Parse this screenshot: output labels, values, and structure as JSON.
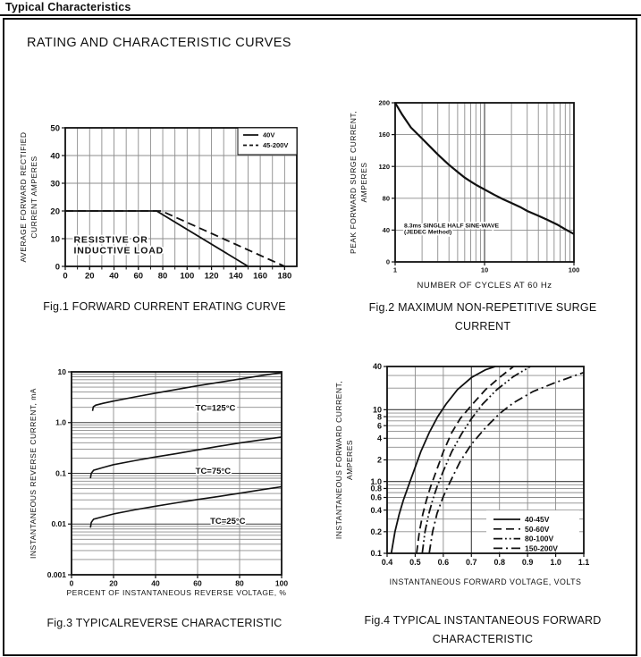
{
  "page": {
    "title": "Typical Characteristics",
    "heading": "RATING AND CHARACTERISTIC CURVES"
  },
  "chart_data": [
    {
      "id": "fig1",
      "type": "line",
      "title": "Fig.1 FORWARD CURRENT ERATING CURVE",
      "title_lines": [
        "Fig.1 FORWARD CURRENT ERATING CURVE"
      ],
      "xlabel": "",
      "ylabel": "AVERAGE FORWARD RECTIFIED CURRENT AMPERES",
      "ylabel_lines": [
        "AVERAGE FORWARD RECTIFIED",
        "CURRENT AMPERES"
      ],
      "xscale": "linear",
      "yscale": "linear",
      "xlim": [
        0,
        190
      ],
      "ylim": [
        0,
        50
      ],
      "xticks": [
        0,
        20,
        40,
        60,
        80,
        100,
        120,
        140,
        160,
        180
      ],
      "xtick_labels": [
        "0",
        "20",
        "40",
        "60",
        "80",
        "100",
        "120",
        "140",
        "160",
        "180"
      ],
      "yticks": [
        0,
        10,
        20,
        30,
        40,
        50
      ],
      "ytick_labels": [
        "0",
        "10",
        "20",
        "30",
        "40",
        "50"
      ],
      "xgrid": {
        "values": [
          10,
          20,
          30,
          40,
          50,
          60,
          70,
          80,
          90,
          100,
          110,
          120,
          130,
          140,
          150,
          160,
          170,
          180
        ],
        "major": []
      },
      "ygrid": {
        "values": [
          10,
          20,
          30,
          40
        ],
        "major": []
      },
      "series": [
        {
          "name": "45-200V",
          "style": "dashed",
          "points": [
            [
              0,
              20
            ],
            [
              79,
              20
            ],
            [
              180,
              0
            ]
          ]
        },
        {
          "name": "40V",
          "style": "solid",
          "points": [
            [
              0,
              20
            ],
            [
              75,
              20
            ],
            [
              150,
              0
            ]
          ]
        }
      ],
      "annotations": [
        {
          "text": "RESISTIVE OR",
          "x": 7,
          "y": 9.8,
          "size": 10.5,
          "bold": true,
          "ls": 0.8
        },
        {
          "text": "INDUCTIVE LOAD",
          "x": 7,
          "y": 5.9,
          "size": 10.5,
          "bold": true,
          "ls": 0.8
        }
      ],
      "legend": {
        "items": [
          {
            "label": "40V",
            "style": "solid"
          },
          {
            "label": "45-200V",
            "style": "dashed-short"
          }
        ]
      }
    },
    {
      "id": "fig2",
      "type": "line",
      "title": "Fig.2 MAXIMUM NON-REPETITIVE SURGE CURRENT",
      "title_lines": [
        "Fig.2 MAXIMUM NON-REPETITIVE SURGE",
        "CURRENT"
      ],
      "xlabel": "NUMBER OF CYCLES AT 60 Hz",
      "ylabel": "PEAK  FORWARD SURGE CURRENT, AMPERES",
      "ylabel_lines": [
        "PEAK  FORWARD SURGE CURRENT,",
        "AMPERES"
      ],
      "xscale": "log",
      "yscale": "linear",
      "xlim": [
        1,
        100
      ],
      "ylim": [
        0,
        200
      ],
      "xticks": [
        1,
        10,
        100
      ],
      "xtick_labels": [
        "1",
        "10",
        "100"
      ],
      "yticks": [
        0,
        40,
        80,
        120,
        160,
        200
      ],
      "ytick_labels": [
        "0",
        "40",
        "80",
        "120",
        "160",
        "200"
      ],
      "xgrid": {
        "values": [
          2,
          3,
          4,
          5,
          6,
          7,
          8,
          9,
          20,
          30,
          40,
          50,
          60,
          70,
          80,
          90
        ],
        "major": [
          10
        ]
      },
      "ygrid": {
        "values": [
          40,
          80,
          120,
          160
        ],
        "major": []
      },
      "series": [
        {
          "name": "surge-current",
          "style": "solid",
          "points": [
            [
              1,
              200
            ],
            [
              1.2,
              185
            ],
            [
              1.5,
              169
            ],
            [
              2,
              155
            ],
            [
              2.5,
              144
            ],
            [
              3,
              135
            ],
            [
              4,
              122
            ],
            [
              5,
              113
            ],
            [
              6,
              106
            ],
            [
              7,
              101
            ],
            [
              8,
              97
            ],
            [
              10,
              91
            ],
            [
              13,
              84
            ],
            [
              16,
              79
            ],
            [
              20,
              74
            ],
            [
              25,
              69
            ],
            [
              30,
              64
            ],
            [
              40,
              58
            ],
            [
              50,
              53
            ],
            [
              65,
              47
            ],
            [
              80,
              41
            ],
            [
              100,
              35
            ]
          ]
        }
      ],
      "annotations": [
        {
          "text": "8.3ms SINGLE HALF SINE-WAVE",
          "x": 1.26,
          "y": 46,
          "size": 6.8,
          "bold": true
        },
        {
          "text": "(JEDEC Method)",
          "x": 1.26,
          "y": 38,
          "size": 6.8,
          "bold": true
        }
      ]
    },
    {
      "id": "fig3",
      "type": "line",
      "title": "Fig.3 TYPICALREVERSE CHARACTERISTIC",
      "title_lines": [
        "Fig.3 TYPICALREVERSE CHARACTERISTIC"
      ],
      "xlabel": "PERCENT OF INSTANTANEOUS REVERSE VOLTAGE, %",
      "ylabel": "INSTANTANEOUS REVERSE CURRENT, mA",
      "ylabel_lines": [
        "INSTANTANEOUS REVERSE CURRENT, mA"
      ],
      "xscale": "linear",
      "yscale": "log",
      "xlim": [
        0,
        100
      ],
      "ylim": [
        0.001,
        10
      ],
      "xticks": [
        0,
        20,
        40,
        60,
        80,
        100
      ],
      "xtick_labels": [
        "0",
        "20",
        "40",
        "60",
        "80",
        "100"
      ],
      "yticks": [
        10,
        1,
        0.1,
        0.01,
        0.001
      ],
      "ytick_labels": [
        "10",
        "1.0",
        "0.1",
        "0.01",
        "0.001"
      ],
      "xgrid": {
        "values": [
          20,
          40,
          60,
          80
        ],
        "major": []
      },
      "ygrid": {
        "values": [
          0.002,
          0.003,
          0.004,
          0.005,
          0.006,
          0.007,
          0.008,
          0.009,
          0.02,
          0.03,
          0.04,
          0.05,
          0.06,
          0.07,
          0.08,
          0.09,
          0.2,
          0.3,
          0.4,
          0.5,
          0.6,
          0.7,
          0.8,
          0.9,
          2,
          3,
          4,
          5,
          6,
          7,
          8,
          9
        ],
        "major": [
          0.01,
          0.1,
          1
        ]
      },
      "series": [
        {
          "name": "TC=125°C",
          "style": "solid",
          "points": [
            [
              10,
              1.7
            ],
            [
              10.4,
              2.05
            ],
            [
              11.5,
              2.2
            ],
            [
              15,
              2.4
            ],
            [
              20,
              2.65
            ],
            [
              30,
              3.2
            ],
            [
              40,
              3.8
            ],
            [
              50,
              4.5
            ],
            [
              60,
              5.3
            ],
            [
              70,
              6.2
            ],
            [
              80,
              7.2
            ],
            [
              90,
              8.4
            ],
            [
              100,
              9.7
            ]
          ]
        },
        {
          "name": "TC=75°C",
          "style": "solid",
          "points": [
            [
              9,
              0.08
            ],
            [
              9.4,
              0.1
            ],
            [
              10.5,
              0.115
            ],
            [
              15,
              0.13
            ],
            [
              20,
              0.148
            ],
            [
              30,
              0.177
            ],
            [
              40,
              0.21
            ],
            [
              50,
              0.245
            ],
            [
              60,
              0.29
            ],
            [
              70,
              0.34
            ],
            [
              80,
              0.395
            ],
            [
              90,
              0.455
            ],
            [
              100,
              0.52
            ]
          ]
        },
        {
          "name": "TC=25°C",
          "style": "solid",
          "points": [
            [
              9,
              0.0085
            ],
            [
              9.4,
              0.0108
            ],
            [
              10.5,
              0.0125
            ],
            [
              15,
              0.014
            ],
            [
              20,
              0.0158
            ],
            [
              30,
              0.019
            ],
            [
              40,
              0.0225
            ],
            [
              50,
              0.0262
            ],
            [
              60,
              0.0305
            ],
            [
              70,
              0.035
            ],
            [
              80,
              0.0405
            ],
            [
              90,
              0.047
            ],
            [
              100,
              0.0545
            ]
          ]
        }
      ],
      "annotations": [
        {
          "text": "TC=125°C",
          "x": 59,
          "y": 1.95,
          "size": 9.5,
          "bold": true
        },
        {
          "text": "TC=75°C",
          "x": 59,
          "y": 0.112,
          "size": 9.5,
          "bold": true
        },
        {
          "text": "TC=25°C",
          "x": 66,
          "y": 0.0115,
          "size": 9.5,
          "bold": true
        }
      ]
    },
    {
      "id": "fig4",
      "type": "line",
      "title": "Fig.4 TYPICAL INSTANTANEOUS FORWARD CHARACTERISTIC",
      "title_lines": [
        "Fig.4 TYPICAL INSTANTANEOUS FORWARD",
        "CHARACTERISTIC"
      ],
      "xlabel": "INSTANTANEOUS FORWARD VOLTAGE, VOLTS",
      "ylabel": "INSTANTANEOUS FORWARD CURRENT, AMPERES",
      "ylabel_lines": [
        "INSTANTANEOUS FORWARD CURRENT,",
        "AMPERES"
      ],
      "xscale": "linear",
      "yscale": "log",
      "xlim": [
        0.4,
        1.1
      ],
      "ylim": [
        0.1,
        40
      ],
      "xticks": [
        0.4,
        0.5,
        0.6,
        0.7,
        0.8,
        0.9,
        1.0,
        1.1
      ],
      "xtick_labels": [
        "0.4",
        "0.5",
        "0.6",
        "0.7",
        "0.8",
        "0.9",
        "1.0",
        "1.1"
      ],
      "yticks": [
        40,
        10,
        8,
        6,
        4,
        2,
        1,
        0.8,
        0.6,
        0.4,
        0.2,
        0.1
      ],
      "ytick_labels": [
        "40",
        "10",
        "8",
        "6",
        "4",
        "2",
        "1.0",
        "0.8",
        "0.6",
        "0.4",
        "0.2",
        "0.1"
      ],
      "xgrid": {
        "values": [
          0.5,
          0.6,
          0.8,
          0.9,
          1.0
        ],
        "major": [
          0.7
        ]
      },
      "ygrid": {
        "values": [
          0.2,
          0.3,
          0.4,
          0.5,
          0.6,
          0.7,
          0.8,
          0.9,
          2,
          3,
          4,
          5,
          6,
          7,
          8,
          9,
          20,
          30
        ],
        "major": [
          1,
          10
        ]
      },
      "series": [
        {
          "name": "40-45V",
          "style": "solid",
          "points": [
            [
              0.415,
              0.1
            ],
            [
              0.428,
              0.2
            ],
            [
              0.443,
              0.35
            ],
            [
              0.458,
              0.55
            ],
            [
              0.475,
              0.85
            ],
            [
              0.495,
              1.4
            ],
            [
              0.52,
              2.6
            ],
            [
              0.55,
              4.8
            ],
            [
              0.58,
              8
            ],
            [
              0.61,
              12
            ],
            [
              0.65,
              19
            ],
            [
              0.7,
              28
            ],
            [
              0.75,
              36
            ],
            [
              0.785,
              40
            ]
          ]
        },
        {
          "name": "50-60V",
          "style": "dashed",
          "points": [
            [
              0.505,
              0.1
            ],
            [
              0.515,
              0.2
            ],
            [
              0.527,
              0.35
            ],
            [
              0.54,
              0.55
            ],
            [
              0.555,
              0.85
            ],
            [
              0.572,
              1.3
            ],
            [
              0.6,
              2.6
            ],
            [
              0.63,
              4.8
            ],
            [
              0.66,
              7.5
            ],
            [
              0.7,
              11.5
            ],
            [
              0.75,
              19
            ],
            [
              0.8,
              28
            ],
            [
              0.85,
              40
            ]
          ]
        },
        {
          "name": "80-100V",
          "style": "dashdotdot",
          "points": [
            [
              0.525,
              0.1
            ],
            [
              0.535,
              0.2
            ],
            [
              0.548,
              0.35
            ],
            [
              0.562,
              0.55
            ],
            [
              0.578,
              0.85
            ],
            [
              0.6,
              1.4
            ],
            [
              0.63,
              2.6
            ],
            [
              0.665,
              4.6
            ],
            [
              0.7,
              7.5
            ],
            [
              0.74,
              12
            ],
            [
              0.79,
              19
            ],
            [
              0.85,
              29
            ],
            [
              0.91,
              40
            ]
          ]
        },
        {
          "name": "150-200V",
          "style": "dashdot",
          "points": [
            [
              0.55,
              0.1
            ],
            [
              0.562,
              0.2
            ],
            [
              0.578,
              0.36
            ],
            [
              0.6,
              0.62
            ],
            [
              0.625,
              1.0
            ],
            [
              0.66,
              1.9
            ],
            [
              0.7,
              3.3
            ],
            [
              0.75,
              5.6
            ],
            [
              0.8,
              8.8
            ],
            [
              0.85,
              12.5
            ],
            [
              0.92,
              18
            ],
            [
              1.0,
              24
            ],
            [
              1.06,
              29
            ],
            [
              1.1,
              33
            ]
          ]
        }
      ],
      "legend": {
        "items": [
          {
            "label": "40-45V",
            "style": "solid"
          },
          {
            "label": "50-60V",
            "style": "dashed"
          },
          {
            "label": "80-100V",
            "style": "dashdotdot"
          },
          {
            "label": "150-200V",
            "style": "dashdot"
          }
        ]
      }
    }
  ]
}
